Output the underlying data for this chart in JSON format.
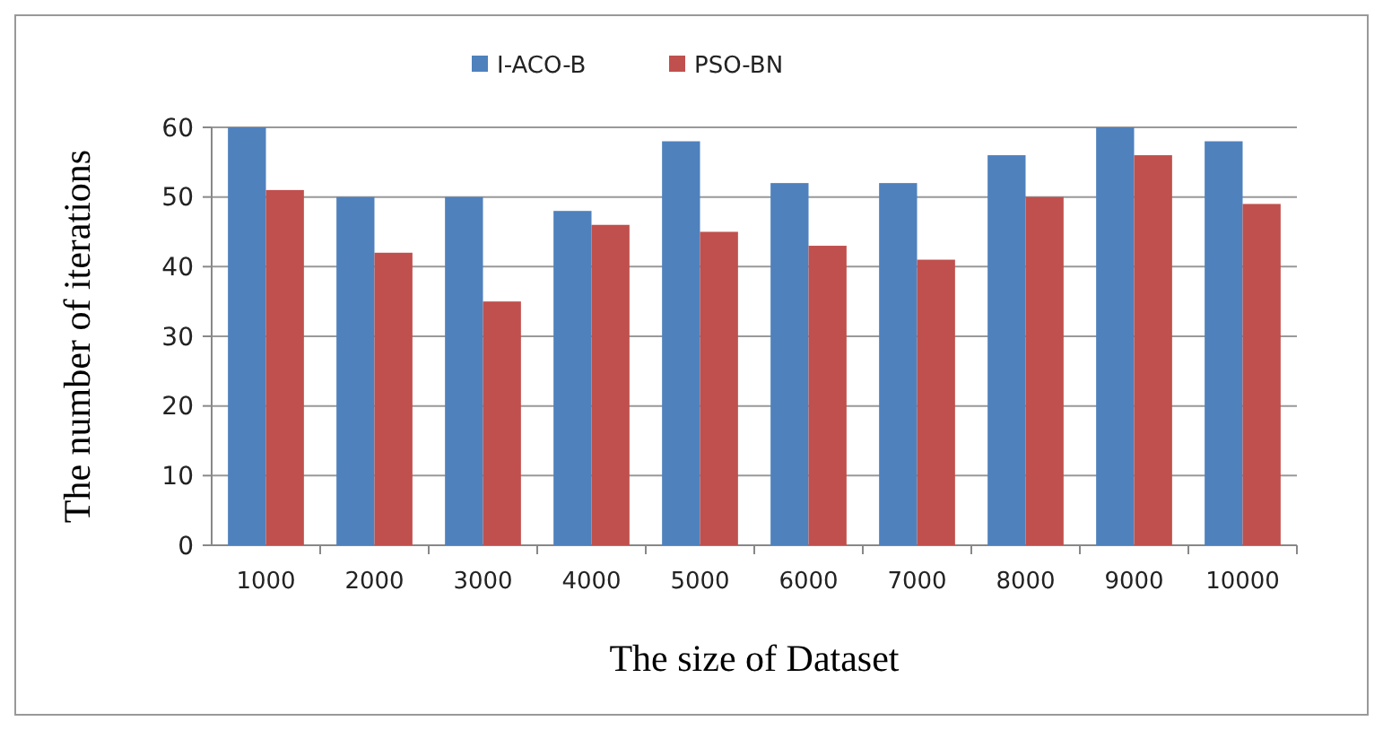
{
  "chart_data": {
    "type": "bar",
    "xlabel": "The size of Dataset",
    "ylabel": "The number of iterations",
    "categories": [
      "1000",
      "2000",
      "3000",
      "4000",
      "5000",
      "6000",
      "7000",
      "8000",
      "9000",
      "10000"
    ],
    "series": [
      {
        "name": "I-ACO-B",
        "color": "#4f81bd",
        "values": [
          60,
          50,
          50,
          48,
          58,
          52,
          52,
          56,
          60,
          58
        ]
      },
      {
        "name": "PSO-BN",
        "color": "#c0504d",
        "values": [
          51,
          42,
          35,
          46,
          45,
          43,
          41,
          50,
          56,
          49
        ]
      }
    ],
    "ylim": [
      0,
      60
    ],
    "yticks": [
      0,
      10,
      20,
      30,
      40,
      50,
      60
    ],
    "grid": "y",
    "legend": "top"
  }
}
